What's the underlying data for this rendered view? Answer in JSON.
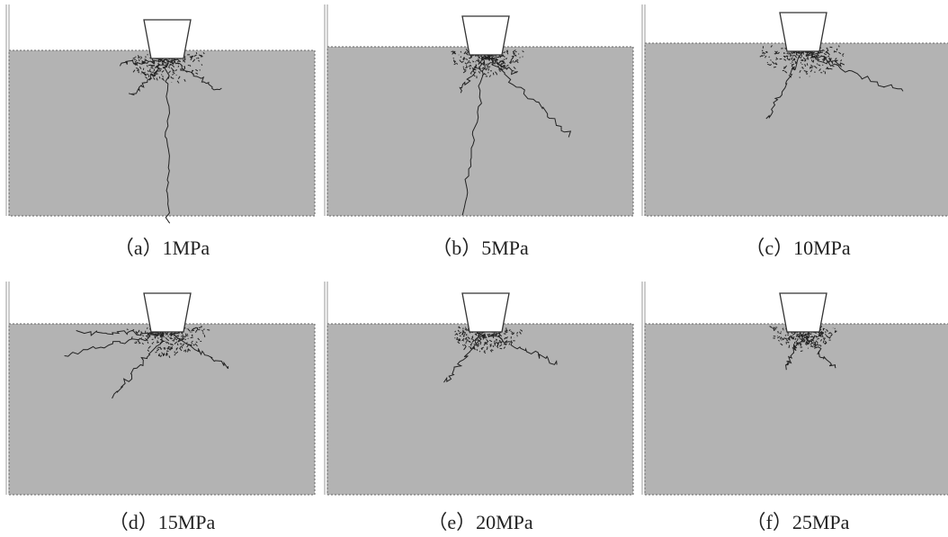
{
  "panels": [
    {
      "caption": "（a）1MPa"
    },
    {
      "caption": "（b）5MPa"
    },
    {
      "caption": "（c）10MPa"
    },
    {
      "caption": "（d）15MPa"
    },
    {
      "caption": "（e）20MPa"
    },
    {
      "caption": "（f）25MPa"
    }
  ]
}
